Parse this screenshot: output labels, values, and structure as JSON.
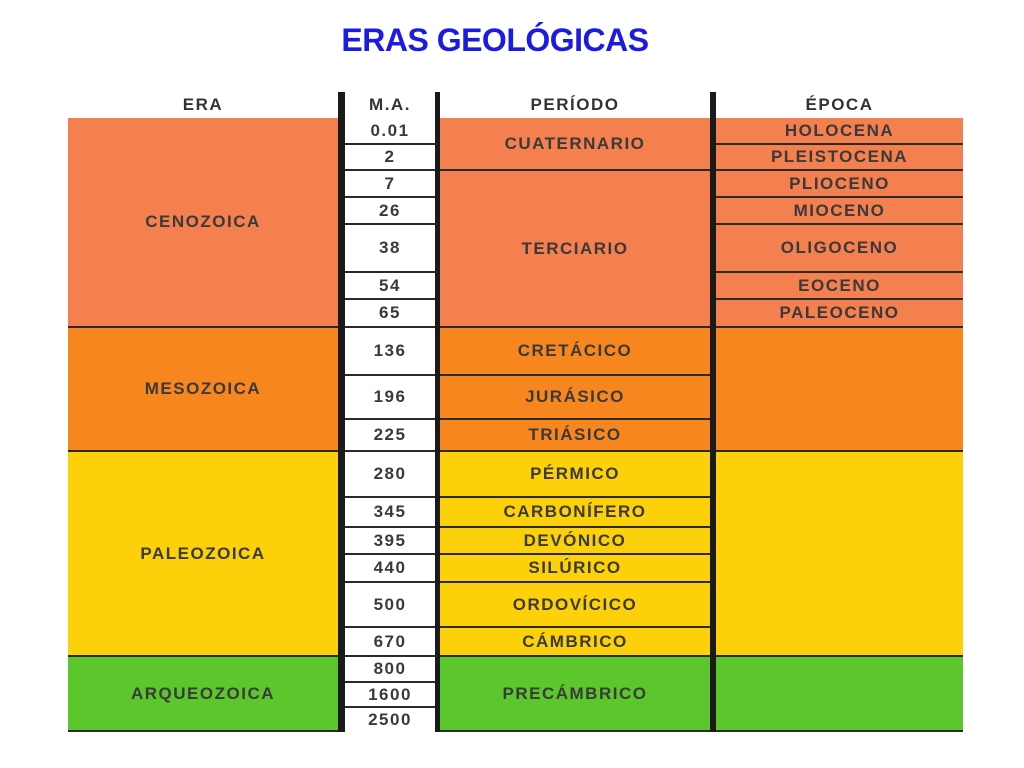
{
  "title": "ERAS GEOLÓGICAS",
  "table": {
    "headers": [
      "ERA",
      "M.A.",
      "PERÍODO",
      "ÉPOCA"
    ],
    "ma": [
      0.01,
      2,
      7,
      26,
      38,
      54,
      65,
      136,
      196,
      225,
      280,
      345,
      395,
      440,
      500,
      670,
      800,
      1600,
      2500
    ],
    "eras": [
      {
        "name": "CENOZOICA",
        "color": "#f47f4f"
      },
      {
        "name": "MESOZOICA",
        "color": "#f7861f"
      },
      {
        "name": "PALEOZOICA",
        "color": "#fdd10a"
      },
      {
        "name": "ARQUEOZOICA",
        "color": "#5cc72c"
      }
    ],
    "periods": [
      "CUATERNARIO",
      "TERCIARIO",
      "CRETÁCICO",
      "JURÁSICO",
      "TRIÁSICO",
      "PÉRMICO",
      "CARBONÍFERO",
      "DEVÓNICO",
      "SILÚRICO",
      "ORDOVÍCICO",
      "CÁMBRICO",
      "PRECÁMBRICO"
    ],
    "epochs": [
      "HOLOCENA",
      "PLEISTOCENA",
      "PLIOCENO",
      "MIOCENO",
      "OLIGOCENO",
      "EOCENO",
      "PALEOCENO"
    ]
  }
}
